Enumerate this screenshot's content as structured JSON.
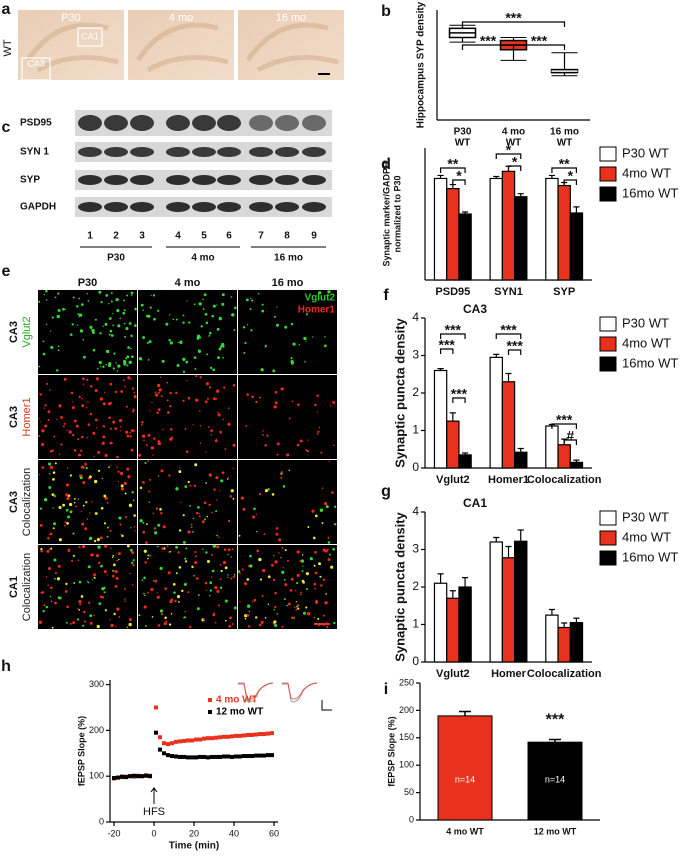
{
  "figure": {
    "a": {
      "letter": "a",
      "row_label": "WT",
      "columns": [
        "P30",
        "4 mo",
        "16 mo"
      ],
      "regions": [
        "CA1",
        "CA3"
      ]
    },
    "c": {
      "letter": "c",
      "rows": [
        "PSD95",
        "SYN 1",
        "SYP",
        "GAPDH"
      ],
      "lanes": [
        "1",
        "2",
        "3",
        "4",
        "5",
        "6",
        "7",
        "8",
        "9"
      ],
      "groups": [
        "P30",
        "4 mo",
        "16 mo"
      ]
    },
    "e": {
      "letter": "e",
      "columns": [
        "P30",
        "4 mo",
        "16 mo"
      ],
      "legend": [
        {
          "text": "Vglut2",
          "color": "#22cc22"
        },
        {
          "text": "Homer1",
          "color": "#ee2a1a"
        }
      ],
      "rows": [
        {
          "region": "CA3",
          "stain": "Vglut2",
          "color": "#22aa22"
        },
        {
          "region": "CA3",
          "stain": "Homer1",
          "color": "#e8321e"
        },
        {
          "region": "CA3",
          "stain": "Colocalization",
          "color": "#222222"
        },
        {
          "region": "CA1",
          "stain": "Colocalization",
          "color": "#222222"
        }
      ]
    }
  },
  "chart_data": [
    {
      "panel": "b",
      "type": "box",
      "y_label": "Hippocampus SYP density",
      "ylim": [
        0,
        3.6
      ],
      "categories": [
        [
          "P30",
          "WT"
        ],
        [
          "4 mo",
          "WT"
        ],
        [
          "16 mo",
          "WT"
        ]
      ],
      "colors": [
        "#ffffff",
        "#e8321e",
        "#000000"
      ],
      "boxes": {
        "whislo": [
          2.55,
          1.95,
          1.45
        ],
        "q1": [
          2.7,
          2.3,
          1.55
        ],
        "med": [
          2.85,
          2.45,
          1.6
        ],
        "q3": [
          3.0,
          2.6,
          1.65
        ],
        "whishi": [
          3.1,
          2.7,
          2.2
        ]
      },
      "annotations": [
        "***",
        "***",
        "***"
      ]
    },
    {
      "panel": "d",
      "type": "grouped_bar",
      "y_label": [
        "Synaptic marker/GADPH",
        "normalized to P30"
      ],
      "ylim": [
        0,
        1.3
      ],
      "categories": [
        "PSD95",
        "SYN1",
        "SYP"
      ],
      "series": [
        {
          "name": "P30 WT",
          "color": "#ffffff",
          "values": [
            1.0,
            1.0,
            1.0
          ],
          "errors": [
            0.03,
            0.02,
            0.03
          ]
        },
        {
          "name": "4mo WT",
          "color": "#e8321e",
          "values": [
            0.9,
            1.07,
            0.93
          ],
          "errors": [
            0.04,
            0.05,
            0.03
          ]
        },
        {
          "name": "16mo WT",
          "color": "#000000",
          "values": [
            0.65,
            0.82,
            0.66
          ],
          "errors": [
            0.02,
            0.03,
            0.06
          ]
        }
      ],
      "annotations": [
        "**",
        "*",
        "*",
        "*",
        "**",
        "*"
      ]
    },
    {
      "panel": "f",
      "type": "grouped_bar",
      "title": "CA3",
      "y_label": "Synaptic puncta density",
      "ylim": [
        0,
        4
      ],
      "yticks": [
        0,
        1,
        2,
        3,
        4
      ],
      "categories": [
        "Vglut2",
        "Homer1",
        "Colocalization"
      ],
      "series": [
        {
          "name": "P30 WT",
          "color": "#ffffff",
          "values": [
            2.6,
            2.95,
            1.12
          ],
          "errors": [
            0.05,
            0.08,
            0.04
          ]
        },
        {
          "name": "4mo WT",
          "color": "#e8321e",
          "values": [
            1.25,
            2.3,
            0.62
          ],
          "errors": [
            0.22,
            0.22,
            0.15
          ]
        },
        {
          "name": "16mo WT",
          "color": "#000000",
          "values": [
            0.35,
            0.42,
            0.15
          ],
          "errors": [
            0.05,
            0.1,
            0.06
          ]
        }
      ],
      "annotations": [
        "***",
        "***",
        "***",
        "***",
        "***",
        "***",
        "#"
      ]
    },
    {
      "panel": "g",
      "type": "grouped_bar",
      "title": "CA1",
      "y_label": "Synaptic puncta density",
      "ylim": [
        0,
        4
      ],
      "yticks": [
        0,
        1,
        2,
        3,
        4
      ],
      "categories": [
        "Vglut2",
        "Homer",
        "Colocalization"
      ],
      "series": [
        {
          "name": "P30 WT",
          "color": "#ffffff",
          "values": [
            2.1,
            3.2,
            1.25
          ],
          "errors": [
            0.25,
            0.12,
            0.15
          ]
        },
        {
          "name": "4mo WT",
          "color": "#e8321e",
          "values": [
            1.7,
            2.78,
            0.92
          ],
          "errors": [
            0.2,
            0.3,
            0.12
          ]
        },
        {
          "name": "16mo WT",
          "color": "#000000",
          "values": [
            2.0,
            3.22,
            1.05
          ],
          "errors": [
            0.25,
            0.3,
            0.12
          ]
        }
      ]
    },
    {
      "panel": "h",
      "type": "line",
      "x_label": "Time (min)",
      "y_label": "fEPSP Slope (%)",
      "xlim": [
        -22,
        62
      ],
      "xticks": [
        -20,
        0,
        20,
        40,
        60
      ],
      "ylim": [
        0,
        310
      ],
      "yticks": [
        0,
        100,
        200,
        300
      ],
      "x": [
        -20,
        -18,
        -16,
        -14,
        -12,
        -10,
        -8,
        -6,
        -4,
        -2,
        1,
        3,
        5,
        7,
        9,
        11,
        13,
        15,
        17,
        19,
        21,
        23,
        25,
        27,
        29,
        31,
        33,
        35,
        37,
        39,
        41,
        43,
        45,
        47,
        49,
        51,
        53,
        55,
        57,
        59
      ],
      "series": [
        {
          "name": "4 mo WT",
          "color": "#e8321e",
          "values": [
            95,
            97,
            98,
            99,
            100,
            99,
            101,
            100,
            102,
            101,
            250,
            185,
            172,
            170,
            172,
            175,
            176,
            177,
            178,
            178,
            180,
            180,
            182,
            183,
            183,
            184,
            185,
            186,
            186,
            187,
            188,
            188,
            189,
            190,
            190,
            191,
            192,
            192,
            193,
            194
          ]
        },
        {
          "name": "12 mo WT",
          "color": "#000000",
          "values": [
            96,
            97,
            99,
            98,
            100,
            101,
            100,
            100,
            101,
            100,
            195,
            158,
            150,
            146,
            144,
            143,
            142,
            142,
            141,
            141,
            141,
            142,
            142,
            141,
            142,
            142,
            142,
            143,
            143,
            142,
            143,
            143,
            144,
            144,
            144,
            145,
            145,
            145,
            146,
            146
          ]
        }
      ],
      "annotations": [
        "HFS"
      ]
    },
    {
      "panel": "i",
      "type": "bar",
      "y_label": "fEPSP Slope (%)",
      "ylim": [
        0,
        250
      ],
      "yticks": [
        0,
        50,
        100,
        150,
        200,
        250
      ],
      "categories": [
        "4 mo WT",
        "12 mo WT"
      ],
      "values": [
        190,
        142
      ],
      "errors": [
        8,
        5
      ],
      "colors": [
        "#e8321e",
        "#000000"
      ],
      "annotations": [
        "n=14",
        "n=14",
        "***"
      ]
    }
  ]
}
